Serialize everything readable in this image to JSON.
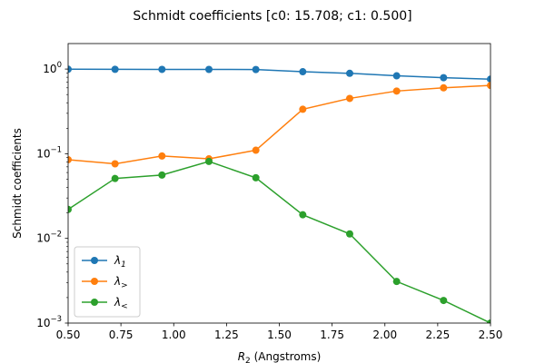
{
  "chart_data": {
    "type": "line",
    "title": "Schmidt coefficients [c0:  15.708; c1:  0.500]",
    "xlabel_var": "R",
    "xlabel_sub": "2",
    "xlabel_unit": " (Angstroms)",
    "ylabel": "Schmidt coefficients",
    "xlim": [
      0.5,
      2.5
    ],
    "ylim": [
      0.001,
      2.0
    ],
    "yscale": "log",
    "grid": false,
    "legend_position": "lower-left",
    "x": [
      0.5,
      0.7222,
      0.9444,
      1.1667,
      1.3889,
      1.6111,
      1.8333,
      2.0556,
      2.2778,
      2.5
    ],
    "x_ticks": [
      {
        "value": 0.5,
        "label": "0.50"
      },
      {
        "value": 0.75,
        "label": "0.75"
      },
      {
        "value": 1.0,
        "label": "1.00"
      },
      {
        "value": 1.25,
        "label": "1.25"
      },
      {
        "value": 1.5,
        "label": "1.50"
      },
      {
        "value": 1.75,
        "label": "1.75"
      },
      {
        "value": 2.0,
        "label": "2.00"
      },
      {
        "value": 2.25,
        "label": "2.25"
      },
      {
        "value": 2.5,
        "label": "2.50"
      }
    ],
    "y_ticks": [
      {
        "value": 0.001,
        "mantissa": "10",
        "exp": "−3"
      },
      {
        "value": 0.01,
        "mantissa": "10",
        "exp": "−2"
      },
      {
        "value": 0.1,
        "mantissa": "10",
        "exp": "−1"
      },
      {
        "value": 1.0,
        "mantissa": "10",
        "exp": "0"
      }
    ],
    "series": [
      {
        "name": "λ",
        "sub": "1",
        "color": "#1f77b4",
        "values": [
          0.995,
          0.993,
          0.991,
          0.99,
          0.987,
          0.93,
          0.89,
          0.832,
          0.79,
          0.76
        ]
      },
      {
        "name": "λ",
        "sub": ">",
        "color": "#ff7f0e",
        "values": [
          0.085,
          0.076,
          0.094,
          0.087,
          0.11,
          0.335,
          0.45,
          0.55,
          0.6,
          0.64
        ]
      },
      {
        "name": "λ",
        "sub": "<",
        "color": "#2ca02c",
        "values": [
          0.022,
          0.051,
          0.056,
          0.081,
          0.052,
          0.019,
          0.0113,
          0.0031,
          0.00185,
          0.001
        ]
      }
    ]
  }
}
